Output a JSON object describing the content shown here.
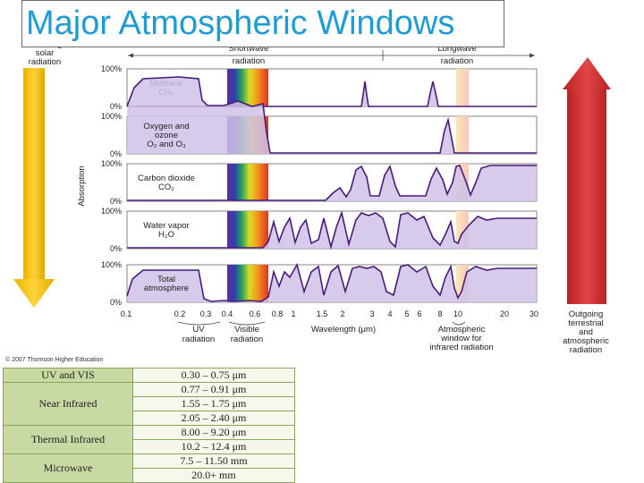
{
  "title": "Major Atmospheric Windows",
  "figure": {
    "incoming_label": [
      "Incoming",
      "solar",
      "radiation"
    ],
    "outgoing_label": [
      "Outgoing",
      "terrestrial",
      "and",
      "atmospheric",
      "radiation"
    ],
    "shortwave_label": [
      "Shortwave",
      "radiation"
    ],
    "longwave_label": [
      "Longwave",
      "radiation"
    ],
    "y_axis_label": "Absorption",
    "pct_top": "100%",
    "pct_bottom": "0%",
    "panels": [
      {
        "lines": [
          "Methane",
          "CH₄"
        ]
      },
      {
        "lines": [
          "Oxygen and",
          "ozone",
          "O₂ and O₃"
        ]
      },
      {
        "lines": [
          "Carbon dioxide",
          "CO₂"
        ]
      },
      {
        "lines": [
          "Water vapor",
          "H₂O"
        ]
      },
      {
        "lines": [
          "Total",
          "atmosphere"
        ]
      }
    ],
    "x_ticks": [
      "0.1",
      "0.2",
      "0.3",
      "0.4",
      "0.6",
      "0.8",
      "1",
      "1.5",
      "2",
      "3",
      "4",
      "5",
      "6",
      "8",
      "10",
      "20",
      "30"
    ],
    "x_axis_label": "Wavelength (μm)",
    "uv_label": [
      "UV",
      "radiation"
    ],
    "visible_label": [
      "Visible",
      "radiation"
    ],
    "window_label": [
      "Atmospheric",
      "window for",
      "infrared radiation"
    ],
    "copyright": "© 2007 Thomson Higher Education",
    "colors": {
      "title": "#1f9bd6",
      "absorption_fill": "#cfc2e6",
      "absorption_line": "#4a1a78",
      "incoming_arrow": "#f2c200",
      "outgoing_arrow": "#d43a3a"
    }
  },
  "bands_table": [
    {
      "name": "UV and VIS",
      "ranges": [
        "0.30 – 0.75 μm"
      ]
    },
    {
      "name": "Near Infrared",
      "ranges": [
        "0.77 – 0.91 μm",
        "1.55 – 1.75 μm",
        "2.05 – 2.40 μm"
      ]
    },
    {
      "name": "Thermal Infrared",
      "ranges": [
        "8.00 – 9.20 μm",
        "10.2 – 12.4 μm"
      ]
    },
    {
      "name": "Microwave",
      "ranges": [
        "7.5 – 11.50 mm",
        "20.0+ mm"
      ]
    }
  ]
}
